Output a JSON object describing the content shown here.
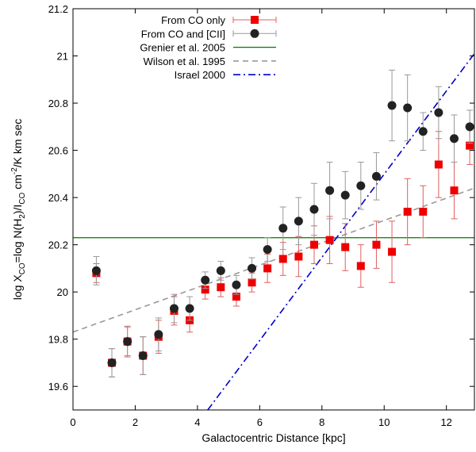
{
  "chart_data": {
    "type": "scatter",
    "title": "",
    "xlabel": "Galactocentric Distance [kpc]",
    "ylabel": {
      "p1": "log X",
      "s1": "CO",
      "p2": "=log N(H",
      "s2": "2",
      "p3": ")/I",
      "s3": "CO",
      "p4": " cm",
      "s4": "-2",
      "p5": "/K km sec"
    },
    "xlim": [
      0,
      12.9
    ],
    "ylim": [
      19.5,
      21.2
    ],
    "xticks": [
      0,
      2,
      4,
      6,
      8,
      10,
      12
    ],
    "yticks": [
      19.6,
      19.8,
      20,
      20.2,
      20.4,
      20.6,
      20.8,
      21,
      21.2
    ],
    "legend_position": "top-center",
    "series": [
      {
        "name": "From CO only",
        "kind": "points",
        "marker": "square",
        "color": "#ee0000",
        "points": [
          {
            "x": 0.75,
            "y": 20.08,
            "err": 0.04
          },
          {
            "x": 1.25,
            "y": 19.7,
            "err": 0.06
          },
          {
            "x": 1.75,
            "y": 19.79,
            "err": 0.065
          },
          {
            "x": 2.25,
            "y": 19.73,
            "err": 0.08
          },
          {
            "x": 2.75,
            "y": 19.81,
            "err": 0.07
          },
          {
            "x": 3.25,
            "y": 19.92,
            "err": 0.06
          },
          {
            "x": 3.75,
            "y": 19.88,
            "err": 0.05
          },
          {
            "x": 4.25,
            "y": 20.01,
            "err": 0.04
          },
          {
            "x": 4.75,
            "y": 20.02,
            "err": 0.04
          },
          {
            "x": 5.25,
            "y": 19.98,
            "err": 0.04
          },
          {
            "x": 5.75,
            "y": 20.04,
            "err": 0.04
          },
          {
            "x": 6.25,
            "y": 20.1,
            "err": 0.06
          },
          {
            "x": 6.75,
            "y": 20.14,
            "err": 0.07
          },
          {
            "x": 7.25,
            "y": 20.15,
            "err": 0.085
          },
          {
            "x": 7.75,
            "y": 20.2,
            "err": 0.08
          },
          {
            "x": 8.25,
            "y": 20.22,
            "err": 0.1
          },
          {
            "x": 8.75,
            "y": 20.19,
            "err": 0.1
          },
          {
            "x": 9.25,
            "y": 20.11,
            "err": 0.09
          },
          {
            "x": 9.75,
            "y": 20.2,
            "err": 0.1
          },
          {
            "x": 10.25,
            "y": 20.17,
            "err": 0.13
          },
          {
            "x": 10.75,
            "y": 20.34,
            "err": 0.14
          },
          {
            "x": 11.25,
            "y": 20.34,
            "err": 0.11
          },
          {
            "x": 11.75,
            "y": 20.54,
            "err": 0.14
          },
          {
            "x": 12.25,
            "y": 20.43,
            "err": 0.12
          },
          {
            "x": 12.75,
            "y": 20.62,
            "err": 0.08
          }
        ]
      },
      {
        "name": "From CO and [CII]",
        "kind": "points",
        "marker": "circle",
        "color": "#222222",
        "points": [
          {
            "x": 0.75,
            "y": 20.09,
            "err": 0.06
          },
          {
            "x": 1.25,
            "y": 19.7,
            "err": 0.06
          },
          {
            "x": 1.75,
            "y": 19.79,
            "err": 0.06
          },
          {
            "x": 2.25,
            "y": 19.73,
            "err": 0.08
          },
          {
            "x": 2.75,
            "y": 19.82,
            "err": 0.07
          },
          {
            "x": 3.25,
            "y": 19.93,
            "err": 0.06
          },
          {
            "x": 3.75,
            "y": 19.93,
            "err": 0.05
          },
          {
            "x": 4.25,
            "y": 20.05,
            "err": 0.035
          },
          {
            "x": 4.75,
            "y": 20.09,
            "err": 0.04
          },
          {
            "x": 5.25,
            "y": 20.03,
            "err": 0.04
          },
          {
            "x": 5.75,
            "y": 20.1,
            "err": 0.045
          },
          {
            "x": 6.25,
            "y": 20.18,
            "err": 0.05
          },
          {
            "x": 6.75,
            "y": 20.27,
            "err": 0.09
          },
          {
            "x": 7.25,
            "y": 20.3,
            "err": 0.1
          },
          {
            "x": 7.75,
            "y": 20.35,
            "err": 0.11
          },
          {
            "x": 8.25,
            "y": 20.43,
            "err": 0.12
          },
          {
            "x": 8.75,
            "y": 20.41,
            "err": 0.1
          },
          {
            "x": 9.25,
            "y": 20.45,
            "err": 0.1
          },
          {
            "x": 9.75,
            "y": 20.49,
            "err": 0.1
          },
          {
            "x": 10.25,
            "y": 20.79,
            "err": 0.15
          },
          {
            "x": 10.75,
            "y": 20.78,
            "err": 0.14
          },
          {
            "x": 11.25,
            "y": 20.68,
            "err": 0.08
          },
          {
            "x": 11.75,
            "y": 20.76,
            "err": 0.11
          },
          {
            "x": 12.25,
            "y": 20.65,
            "err": 0.1
          },
          {
            "x": 12.75,
            "y": 20.7,
            "err": 0.07
          }
        ]
      },
      {
        "name": "Grenier et al. 2005",
        "kind": "line",
        "style": "solid",
        "color": "#007a00",
        "points": [
          {
            "x": 0,
            "y": 20.23
          },
          {
            "x": 12.9,
            "y": 20.23
          }
        ]
      },
      {
        "name": "Wilson et al. 1995",
        "kind": "line",
        "style": "dashed",
        "color": "#999999",
        "points": [
          {
            "x": 0,
            "y": 19.83
          },
          {
            "x": 12.9,
            "y": 20.44
          }
        ]
      },
      {
        "name": "Israel 2000",
        "kind": "line",
        "style": "dash-dot",
        "color": "#0000cc",
        "points": [
          {
            "x": 4.33,
            "y": 19.5
          },
          {
            "x": 12.9,
            "y": 21.01
          }
        ]
      }
    ]
  }
}
